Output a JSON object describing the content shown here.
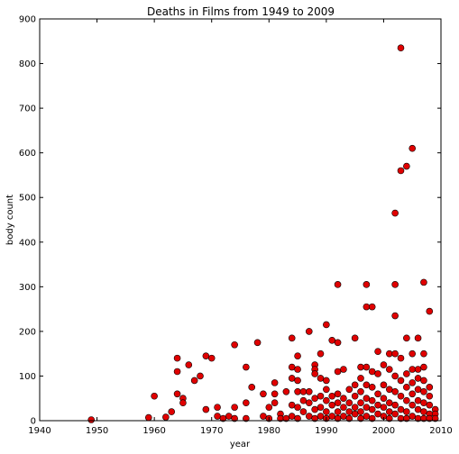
{
  "chart_data": {
    "type": "scatter",
    "title": "Deaths in Films from 1949 to 2009",
    "xlabel": "year",
    "ylabel": "body count",
    "xlim": [
      1940,
      2010
    ],
    "ylim": [
      0,
      900
    ],
    "xticks": [
      1940,
      1950,
      1960,
      1970,
      1980,
      1990,
      2000,
      2010
    ],
    "yticks": [
      0,
      100,
      200,
      300,
      400,
      500,
      600,
      700,
      800,
      900
    ],
    "grid": false,
    "legend": "none",
    "marker_color": "#e00000",
    "marker_edge": "#000000",
    "series": [
      {
        "points": [
          [
            1949,
            2
          ],
          [
            1959,
            7
          ],
          [
            1960,
            55
          ],
          [
            1962,
            8
          ],
          [
            1963,
            20
          ],
          [
            1964,
            140
          ],
          [
            1964,
            110
          ],
          [
            1964,
            60
          ],
          [
            1965,
            50
          ],
          [
            1965,
            40
          ],
          [
            1966,
            125
          ],
          [
            1967,
            90
          ],
          [
            1968,
            100
          ],
          [
            1969,
            145
          ],
          [
            1969,
            25
          ],
          [
            1970,
            140
          ],
          [
            1971,
            30
          ],
          [
            1971,
            10
          ],
          [
            1972,
            5
          ],
          [
            1973,
            10
          ],
          [
            1974,
            170
          ],
          [
            1974,
            30
          ],
          [
            1974,
            5
          ],
          [
            1976,
            120
          ],
          [
            1976,
            40
          ],
          [
            1976,
            5
          ],
          [
            1977,
            75
          ],
          [
            1978,
            175
          ],
          [
            1979,
            60
          ],
          [
            1979,
            10
          ],
          [
            1980,
            30
          ],
          [
            1980,
            5
          ],
          [
            1981,
            85
          ],
          [
            1981,
            60
          ],
          [
            1981,
            40
          ],
          [
            1982,
            15
          ],
          [
            1982,
            5
          ],
          [
            1983,
            65
          ],
          [
            1983,
            5
          ],
          [
            1984,
            185
          ],
          [
            1984,
            120
          ],
          [
            1984,
            95
          ],
          [
            1984,
            35
          ],
          [
            1984,
            10
          ],
          [
            1985,
            145
          ],
          [
            1985,
            115
          ],
          [
            1985,
            90
          ],
          [
            1985,
            65
          ],
          [
            1985,
            30
          ],
          [
            1985,
            5
          ],
          [
            1986,
            65
          ],
          [
            1986,
            45
          ],
          [
            1986,
            20
          ],
          [
            1987,
            200
          ],
          [
            1987,
            65
          ],
          [
            1987,
            40
          ],
          [
            1987,
            10
          ],
          [
            1988,
            125
          ],
          [
            1988,
            115
          ],
          [
            1988,
            105
          ],
          [
            1988,
            50
          ],
          [
            1988,
            25
          ],
          [
            1988,
            5
          ],
          [
            1989,
            150
          ],
          [
            1989,
            95
          ],
          [
            1989,
            55
          ],
          [
            1989,
            30
          ],
          [
            1989,
            10
          ],
          [
            1990,
            215
          ],
          [
            1990,
            90
          ],
          [
            1990,
            70
          ],
          [
            1990,
            45
          ],
          [
            1990,
            20
          ],
          [
            1990,
            5
          ],
          [
            1991,
            180
          ],
          [
            1991,
            55
          ],
          [
            1991,
            35
          ],
          [
            1991,
            10
          ],
          [
            1992,
            305
          ],
          [
            1992,
            175
          ],
          [
            1992,
            110
          ],
          [
            1992,
            60
          ],
          [
            1992,
            40
          ],
          [
            1992,
            20
          ],
          [
            1992,
            5
          ],
          [
            1993,
            115
          ],
          [
            1993,
            50
          ],
          [
            1993,
            30
          ],
          [
            1993,
            10
          ],
          [
            1994,
            70
          ],
          [
            1994,
            40
          ],
          [
            1994,
            20
          ],
          [
            1994,
            5
          ],
          [
            1995,
            185
          ],
          [
            1995,
            80
          ],
          [
            1995,
            55
          ],
          [
            1995,
            30
          ],
          [
            1995,
            15
          ],
          [
            1996,
            120
          ],
          [
            1996,
            95
          ],
          [
            1996,
            65
          ],
          [
            1996,
            40
          ],
          [
            1996,
            20
          ],
          [
            1996,
            5
          ],
          [
            1997,
            305
          ],
          [
            1997,
            255
          ],
          [
            1997,
            120
          ],
          [
            1997,
            80
          ],
          [
            1997,
            50
          ],
          [
            1997,
            30
          ],
          [
            1997,
            10
          ],
          [
            1998,
            255
          ],
          [
            1998,
            110
          ],
          [
            1998,
            75
          ],
          [
            1998,
            45
          ],
          [
            1998,
            25
          ],
          [
            1998,
            5
          ],
          [
            1999,
            155
          ],
          [
            1999,
            105
          ],
          [
            1999,
            60
          ],
          [
            1999,
            35
          ],
          [
            1999,
            15
          ],
          [
            2000,
            125
          ],
          [
            2000,
            80
          ],
          [
            2000,
            50
          ],
          [
            2000,
            30
          ],
          [
            2000,
            10
          ],
          [
            2001,
            150
          ],
          [
            2001,
            115
          ],
          [
            2001,
            70
          ],
          [
            2001,
            40
          ],
          [
            2001,
            20
          ],
          [
            2001,
            5
          ],
          [
            2002,
            465
          ],
          [
            2002,
            305
          ],
          [
            2002,
            235
          ],
          [
            2002,
            150
          ],
          [
            2002,
            100
          ],
          [
            2002,
            65
          ],
          [
            2002,
            35
          ],
          [
            2002,
            15
          ],
          [
            2003,
            835
          ],
          [
            2003,
            560
          ],
          [
            2003,
            140
          ],
          [
            2003,
            90
          ],
          [
            2003,
            55
          ],
          [
            2003,
            25
          ],
          [
            2003,
            5
          ],
          [
            2004,
            570
          ],
          [
            2004,
            185
          ],
          [
            2004,
            105
          ],
          [
            2004,
            75
          ],
          [
            2004,
            45
          ],
          [
            2004,
            20
          ],
          [
            2004,
            5
          ],
          [
            2005,
            610
          ],
          [
            2005,
            150
          ],
          [
            2005,
            115
          ],
          [
            2005,
            85
          ],
          [
            2005,
            60
          ],
          [
            2005,
            35
          ],
          [
            2005,
            10
          ],
          [
            2006,
            185
          ],
          [
            2006,
            115
          ],
          [
            2006,
            95
          ],
          [
            2006,
            70
          ],
          [
            2006,
            45
          ],
          [
            2006,
            25
          ],
          [
            2006,
            5
          ],
          [
            2007,
            310
          ],
          [
            2007,
            150
          ],
          [
            2007,
            120
          ],
          [
            2007,
            90
          ],
          [
            2007,
            65
          ],
          [
            2007,
            40
          ],
          [
            2007,
            20
          ],
          [
            2007,
            5
          ],
          [
            2008,
            245
          ],
          [
            2008,
            75
          ],
          [
            2008,
            55
          ],
          [
            2008,
            35
          ],
          [
            2008,
            15
          ],
          [
            2008,
            5
          ],
          [
            2009,
            25
          ],
          [
            2009,
            15
          ],
          [
            2009,
            5
          ]
        ]
      }
    ]
  }
}
